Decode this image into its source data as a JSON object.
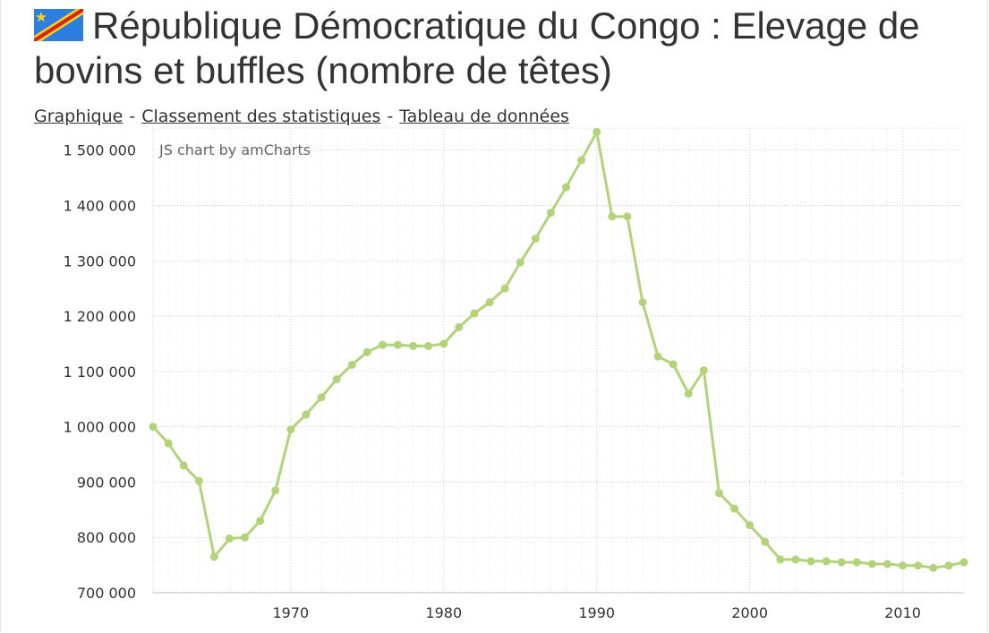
{
  "header": {
    "title": "République Démocratique du Congo : Elevage de bovins et buffles (nombre de têtes)",
    "flag_icon": "drc-flag-icon",
    "flag_colors": {
      "blue": "#2c7fe0",
      "red": "#d5231d",
      "yellow": "#f5d21d"
    }
  },
  "nav": {
    "links": [
      "Graphique",
      "Classement des statistiques",
      "Tableau de données"
    ],
    "separator": "-"
  },
  "chart_data": {
    "type": "line",
    "credit": "JS chart by amCharts",
    "title": "",
    "xlabel": "",
    "ylabel": "",
    "line_color": "#b3d37a",
    "grid": true,
    "xlim": [
      1961,
      2014
    ],
    "ylim": [
      700000,
      1540000
    ],
    "xticks": [
      1970,
      1980,
      1990,
      2000,
      2010
    ],
    "yticks": [
      700000,
      800000,
      900000,
      1000000,
      1100000,
      1200000,
      1300000,
      1400000,
      1500000
    ],
    "ytick_labels": [
      "700 000",
      "800 000",
      "900 000",
      "1 000 000",
      "1 100 000",
      "1 200 000",
      "1 300 000",
      "1 400 000",
      "1 500 000"
    ],
    "series": [
      {
        "x": [
          1961,
          1962,
          1963,
          1964,
          1965,
          1966,
          1967,
          1968,
          1969,
          1970,
          1971,
          1972,
          1973,
          1974,
          1975,
          1976,
          1977,
          1978,
          1979,
          1980,
          1981,
          1982,
          1983,
          1984,
          1985,
          1986,
          1987,
          1988,
          1989,
          1990,
          1991,
          1992,
          1993,
          1994,
          1995,
          1996,
          1997,
          1998,
          1999,
          2000,
          2001,
          2002,
          2003,
          2004,
          2005,
          2006,
          2007,
          2008,
          2009,
          2010,
          2011,
          2012,
          2013,
          2014
        ],
        "values": [
          1000000,
          970000,
          930000,
          902000,
          765000,
          798000,
          800000,
          830000,
          885000,
          995000,
          1022000,
          1053000,
          1086000,
          1112000,
          1135000,
          1148000,
          1148000,
          1146000,
          1146000,
          1150000,
          1180000,
          1205000,
          1225000,
          1250000,
          1297000,
          1340000,
          1387000,
          1433000,
          1482000,
          1533000,
          1380000,
          1380000,
          1225000,
          1127000,
          1113000,
          1060000,
          1102000,
          880000,
          852000,
          822000,
          792000,
          760000,
          760000,
          757000,
          757000,
          755000,
          755000,
          752000,
          752000,
          749000,
          749000,
          745000,
          749000,
          755000
        ]
      }
    ]
  }
}
